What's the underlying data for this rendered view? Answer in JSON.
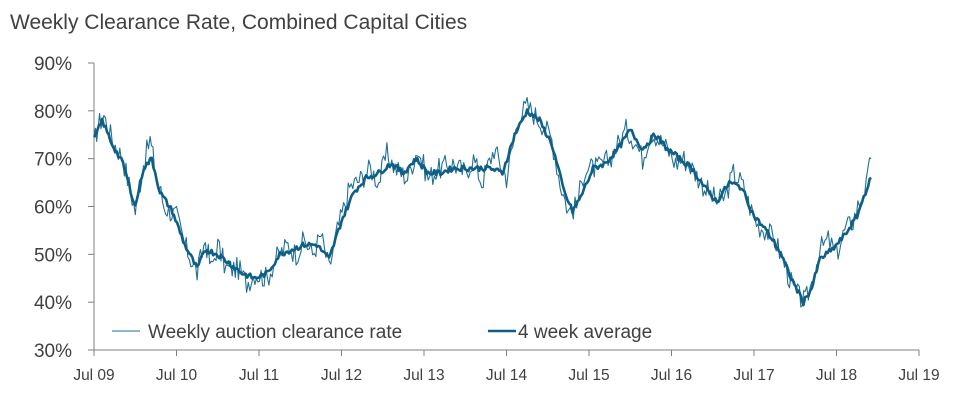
{
  "chart_data": {
    "type": "line",
    "title": "Weekly Clearance Rate, Combined Capital Cities",
    "xlabel": "",
    "ylabel": "",
    "ylim": [
      30,
      90
    ],
    "yticks": [
      90,
      80,
      70,
      60,
      50,
      40,
      30
    ],
    "ytick_labels": [
      "90%",
      "80%",
      "70%",
      "60%",
      "50%",
      "40%",
      "30%"
    ],
    "xticks": [
      2009.5,
      2010.5,
      2011.5,
      2012.5,
      2013.5,
      2014.5,
      2015.5,
      2016.5,
      2017.5,
      2018.5,
      2019.5
    ],
    "xtick_labels": [
      "Jul 09",
      "Jul 10",
      "Jul 11",
      "Jul 12",
      "Jul 13",
      "Jul 14",
      "Jul 15",
      "Jul 16",
      "Jul 17",
      "Jul 18",
      "Jul 19"
    ],
    "xlim": [
      2009.5,
      2019.5
    ],
    "legend_position": "bottom-left",
    "colors": {
      "weekly": "#1f6f97",
      "average": "#0e5e85",
      "axis": "#808080",
      "text": "#404040"
    },
    "series": [
      {
        "name": "Weekly auction clearance rate",
        "style": "thin",
        "anchors": [
          [
            2009.5,
            73
          ],
          [
            2009.55,
            77
          ],
          [
            2009.62,
            79
          ],
          [
            2009.72,
            74
          ],
          [
            2009.85,
            70
          ],
          [
            2010.0,
            59
          ],
          [
            2010.1,
            69
          ],
          [
            2010.18,
            74
          ],
          [
            2010.25,
            67
          ],
          [
            2010.35,
            60
          ],
          [
            2010.5,
            58
          ],
          [
            2010.6,
            52
          ],
          [
            2010.75,
            46
          ],
          [
            2010.85,
            53
          ],
          [
            2010.92,
            47
          ],
          [
            2011.0,
            52
          ],
          [
            2011.1,
            47
          ],
          [
            2011.25,
            47
          ],
          [
            2011.35,
            44
          ],
          [
            2011.45,
            46
          ],
          [
            2011.6,
            45
          ],
          [
            2011.7,
            49
          ],
          [
            2011.85,
            52
          ],
          [
            2011.95,
            50
          ],
          [
            2012.05,
            53
          ],
          [
            2012.15,
            50
          ],
          [
            2012.25,
            54
          ],
          [
            2012.35,
            47
          ],
          [
            2012.45,
            55
          ],
          [
            2012.6,
            64
          ],
          [
            2012.75,
            66
          ],
          [
            2012.85,
            68
          ],
          [
            2012.95,
            65
          ],
          [
            2013.05,
            71
          ],
          [
            2013.15,
            68
          ],
          [
            2013.3,
            66
          ],
          [
            2013.42,
            72
          ],
          [
            2013.55,
            66
          ],
          [
            2013.7,
            68
          ],
          [
            2013.85,
            69
          ],
          [
            2014.0,
            67
          ],
          [
            2014.1,
            70
          ],
          [
            2014.2,
            65
          ],
          [
            2014.35,
            72
          ],
          [
            2014.5,
            66
          ],
          [
            2014.65,
            79
          ],
          [
            2014.75,
            81
          ],
          [
            2014.85,
            79
          ],
          [
            2014.95,
            77
          ],
          [
            2015.05,
            74
          ],
          [
            2015.15,
            65
          ],
          [
            2015.25,
            59
          ],
          [
            2015.35,
            60
          ],
          [
            2015.45,
            68
          ],
          [
            2015.6,
            68
          ],
          [
            2015.75,
            70
          ],
          [
            2015.85,
            73
          ],
          [
            2015.95,
            76
          ],
          [
            2016.05,
            74
          ],
          [
            2016.15,
            70
          ],
          [
            2016.25,
            76
          ],
          [
            2016.35,
            74
          ],
          [
            2016.45,
            72
          ],
          [
            2016.55,
            69
          ],
          [
            2016.65,
            70
          ],
          [
            2016.75,
            68
          ],
          [
            2016.9,
            64
          ],
          [
            2017.05,
            61
          ],
          [
            2017.15,
            62
          ],
          [
            2017.25,
            67
          ],
          [
            2017.35,
            65
          ],
          [
            2017.45,
            60
          ],
          [
            2017.55,
            56
          ],
          [
            2017.65,
            55
          ],
          [
            2017.75,
            53
          ],
          [
            2017.85,
            49
          ],
          [
            2017.95,
            44
          ],
          [
            2018.05,
            41
          ],
          [
            2018.12,
            40
          ],
          [
            2018.2,
            44
          ],
          [
            2018.3,
            51
          ],
          [
            2018.4,
            53
          ],
          [
            2018.5,
            50
          ],
          [
            2018.6,
            55
          ],
          [
            2018.7,
            57
          ],
          [
            2018.78,
            61
          ],
          [
            2018.86,
            64
          ],
          [
            2018.92,
            70
          ]
        ]
      },
      {
        "name": "4 week average",
        "style": "thick",
        "anchors": [
          [
            2009.5,
            74
          ],
          [
            2009.6,
            78
          ],
          [
            2009.72,
            73
          ],
          [
            2009.85,
            69
          ],
          [
            2010.0,
            60
          ],
          [
            2010.1,
            68
          ],
          [
            2010.2,
            70
          ],
          [
            2010.3,
            63
          ],
          [
            2010.45,
            59
          ],
          [
            2010.6,
            52
          ],
          [
            2010.75,
            47
          ],
          [
            2010.85,
            51
          ],
          [
            2011.0,
            50
          ],
          [
            2011.15,
            48
          ],
          [
            2011.3,
            46
          ],
          [
            2011.45,
            45
          ],
          [
            2011.6,
            46
          ],
          [
            2011.75,
            50
          ],
          [
            2011.9,
            51
          ],
          [
            2012.05,
            52
          ],
          [
            2012.2,
            52
          ],
          [
            2012.35,
            49
          ],
          [
            2012.5,
            57
          ],
          [
            2012.65,
            63
          ],
          [
            2012.8,
            66
          ],
          [
            2012.95,
            67
          ],
          [
            2013.1,
            69
          ],
          [
            2013.25,
            67
          ],
          [
            2013.4,
            70
          ],
          [
            2013.55,
            67
          ],
          [
            2013.7,
            67
          ],
          [
            2013.85,
            68
          ],
          [
            2014.0,
            68
          ],
          [
            2014.15,
            68
          ],
          [
            2014.3,
            68
          ],
          [
            2014.45,
            67
          ],
          [
            2014.6,
            75
          ],
          [
            2014.75,
            80
          ],
          [
            2014.9,
            78
          ],
          [
            2015.05,
            73
          ],
          [
            2015.2,
            63
          ],
          [
            2015.3,
            59
          ],
          [
            2015.4,
            62
          ],
          [
            2015.55,
            68
          ],
          [
            2015.7,
            69
          ],
          [
            2015.85,
            72
          ],
          [
            2016.0,
            76
          ],
          [
            2016.15,
            72
          ],
          [
            2016.3,
            75
          ],
          [
            2016.45,
            72
          ],
          [
            2016.6,
            70
          ],
          [
            2016.75,
            68
          ],
          [
            2016.9,
            64
          ],
          [
            2017.05,
            61
          ],
          [
            2017.2,
            65
          ],
          [
            2017.35,
            64
          ],
          [
            2017.5,
            58
          ],
          [
            2017.65,
            55
          ],
          [
            2017.8,
            51
          ],
          [
            2017.95,
            45
          ],
          [
            2018.1,
            40
          ],
          [
            2018.2,
            43
          ],
          [
            2018.3,
            49
          ],
          [
            2018.45,
            51
          ],
          [
            2018.6,
            54
          ],
          [
            2018.75,
            58
          ],
          [
            2018.85,
            63
          ],
          [
            2018.92,
            66
          ]
        ]
      }
    ]
  }
}
